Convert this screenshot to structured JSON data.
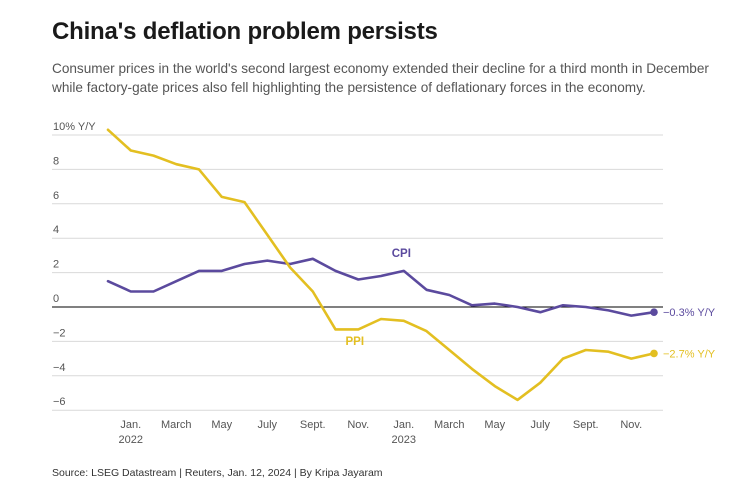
{
  "title": "China's deflation problem persists",
  "subtitle": "Consumer prices in the world's second largest economy extended their decline for a third month in December while factory-gate prices also fell highlighting the persistence of deflationary forces in the economy.",
  "source": "Source: LSEG Datastream | Reuters, Jan. 12, 2024 | By Kripa Jayaram",
  "colors": {
    "cpi": "#5b4a9e",
    "ppi": "#e3bf21",
    "grid": "#d9d9d9",
    "zero": "#000000"
  },
  "chart_data": {
    "type": "line",
    "x": [
      "2021-12",
      "2022-01",
      "2022-02",
      "2022-03",
      "2022-04",
      "2022-05",
      "2022-06",
      "2022-07",
      "2022-08",
      "2022-09",
      "2022-10",
      "2022-11",
      "2022-12",
      "2023-01",
      "2023-02",
      "2023-03",
      "2023-04",
      "2023-05",
      "2023-06",
      "2023-07",
      "2023-08",
      "2023-09",
      "2023-10",
      "2023-11",
      "2023-12"
    ],
    "series": [
      {
        "name": "CPI",
        "end_label": "−0.3% Y/Y",
        "values": [
          1.5,
          0.9,
          0.9,
          1.5,
          2.1,
          2.1,
          2.5,
          2.7,
          2.5,
          2.8,
          2.1,
          1.6,
          1.8,
          2.1,
          1.0,
          0.7,
          0.1,
          0.2,
          0.0,
          -0.3,
          0.1,
          0.0,
          -0.2,
          -0.5,
          -0.3
        ]
      },
      {
        "name": "PPI",
        "end_label": "−2.7% Y/Y",
        "values": [
          10.3,
          9.1,
          8.8,
          8.3,
          8.0,
          6.4,
          6.1,
          4.2,
          2.3,
          0.9,
          -1.3,
          -1.3,
          -0.7,
          -0.8,
          -1.4,
          -2.5,
          -3.6,
          -4.6,
          -5.4,
          -4.4,
          -3.0,
          -2.5,
          -2.6,
          -3.0,
          -2.7
        ]
      }
    ],
    "ylim": [
      -6,
      10
    ],
    "yticks": [
      10,
      8,
      6,
      4,
      2,
      0,
      -2,
      -4,
      -6
    ],
    "ytick_labels": [
      "10% Y/Y",
      "8",
      "6",
      "4",
      "2",
      "0",
      "−2",
      "−4",
      "−6"
    ],
    "xticks": [
      {
        "at": "2022-01",
        "label": "Jan.",
        "sub": "2022"
      },
      {
        "at": "2022-03",
        "label": "March"
      },
      {
        "at": "2022-05",
        "label": "May"
      },
      {
        "at": "2022-07",
        "label": "July"
      },
      {
        "at": "2022-09",
        "label": "Sept."
      },
      {
        "at": "2022-11",
        "label": "Nov."
      },
      {
        "at": "2023-01",
        "label": "Jan.",
        "sub": "2023"
      },
      {
        "at": "2023-03",
        "label": "March"
      },
      {
        "at": "2023-05",
        "label": "May"
      },
      {
        "at": "2023-07",
        "label": "July"
      },
      {
        "at": "2023-09",
        "label": "Sept."
      },
      {
        "at": "2023-11",
        "label": "Nov."
      }
    ],
    "grid": true,
    "legend": "inline labels"
  }
}
